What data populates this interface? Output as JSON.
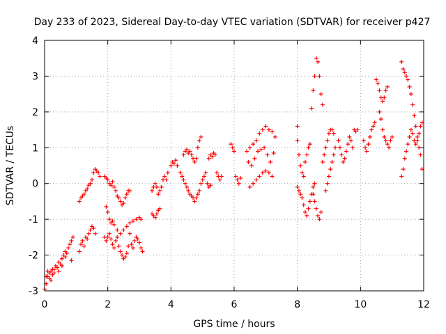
{
  "chart_data": {
    "type": "scatter",
    "title": "Day 233 of 2023, Sidereal Day-to-day VTEC variation (SDTVAR) for receiver p427",
    "xlabel": "GPS time / hours",
    "ylabel": "SDTVAR / TECUs",
    "xlim": [
      0,
      12
    ],
    "ylim": [
      -3,
      4
    ],
    "xticks": [
      "0",
      "2",
      "4",
      "6",
      "8",
      "10",
      "12"
    ],
    "yticks": [
      "-3",
      "-2",
      "-1",
      "0",
      "1",
      "2",
      "3",
      "4"
    ],
    "grid": true,
    "marker": "+",
    "color": "#ff0000",
    "series": [
      {
        "name": "SDTVAR",
        "points": [
          [
            0.0,
            -2.95
          ],
          [
            0.05,
            -2.8
          ],
          [
            0.1,
            -2.6
          ],
          [
            0.15,
            -2.5
          ],
          [
            0.2,
            -2.45
          ],
          [
            0.25,
            -2.55
          ],
          [
            0.3,
            -2.4
          ],
          [
            0.35,
            -2.3
          ],
          [
            0.4,
            -2.35
          ],
          [
            0.45,
            -2.2
          ],
          [
            0.5,
            -2.25
          ],
          [
            0.55,
            -2.1
          ],
          [
            0.6,
            -2.0
          ],
          [
            0.65,
            -1.9
          ],
          [
            0.7,
            -1.95
          ],
          [
            0.75,
            -1.8
          ],
          [
            0.8,
            -1.7
          ],
          [
            0.85,
            -1.6
          ],
          [
            0.9,
            -1.5
          ],
          [
            0.85,
            -2.15
          ],
          [
            0.05,
            -2.6
          ],
          [
            0.1,
            -2.45
          ],
          [
            0.15,
            -2.65
          ],
          [
            0.2,
            -2.7
          ],
          [
            0.25,
            -2.4
          ],
          [
            0.3,
            -2.5
          ],
          [
            0.45,
            -2.45
          ],
          [
            0.55,
            -2.3
          ],
          [
            0.65,
            -2.05
          ],
          [
            1.1,
            -1.9
          ],
          [
            1.15,
            -1.7
          ],
          [
            1.2,
            -1.6
          ],
          [
            1.25,
            -1.75
          ],
          [
            1.3,
            -1.5
          ],
          [
            1.35,
            -1.55
          ],
          [
            1.4,
            -1.4
          ],
          [
            1.45,
            -1.3
          ],
          [
            1.5,
            -1.2
          ],
          [
            1.55,
            -1.25
          ],
          [
            1.6,
            -1.4
          ],
          [
            1.1,
            -0.5
          ],
          [
            1.15,
            -0.4
          ],
          [
            1.2,
            -0.35
          ],
          [
            1.25,
            -0.3
          ],
          [
            1.3,
            -0.2
          ],
          [
            1.35,
            -0.15
          ],
          [
            1.4,
            -0.05
          ],
          [
            1.45,
            0.0
          ],
          [
            1.5,
            0.1
          ],
          [
            1.55,
            0.3
          ],
          [
            1.6,
            0.4
          ],
          [
            1.65,
            0.35
          ],
          [
            1.7,
            0.3
          ],
          [
            1.75,
            0.2
          ],
          [
            1.9,
            0.2
          ],
          [
            1.95,
            0.15
          ],
          [
            2.0,
            0.1
          ],
          [
            2.05,
            0.0
          ],
          [
            2.1,
            -0.05
          ],
          [
            2.15,
            0.05
          ],
          [
            2.2,
            -0.1
          ],
          [
            2.25,
            -0.2
          ],
          [
            2.3,
            -0.35
          ],
          [
            2.35,
            -0.4
          ],
          [
            2.4,
            -0.5
          ],
          [
            2.45,
            -0.6
          ],
          [
            2.5,
            -0.55
          ],
          [
            2.55,
            -0.4
          ],
          [
            2.6,
            -0.3
          ],
          [
            2.65,
            -0.2
          ],
          [
            2.7,
            -0.2
          ],
          [
            1.9,
            -1.5
          ],
          [
            1.95,
            -1.6
          ],
          [
            2.0,
            -1.5
          ],
          [
            2.05,
            -1.4
          ],
          [
            2.1,
            -1.55
          ],
          [
            2.15,
            -1.7
          ],
          [
            2.2,
            -1.8
          ],
          [
            2.25,
            -1.6
          ],
          [
            2.3,
            -1.5
          ],
          [
            2.35,
            -1.75
          ],
          [
            2.4,
            -1.9
          ],
          [
            2.45,
            -2.0
          ],
          [
            2.5,
            -2.1
          ],
          [
            2.55,
            -2.05
          ],
          [
            2.6,
            -1.95
          ],
          [
            2.65,
            -1.75
          ],
          [
            1.95,
            -0.65
          ],
          [
            2.0,
            -0.8
          ],
          [
            2.05,
            -1.0
          ],
          [
            2.1,
            -1.1
          ],
          [
            2.15,
            -1.05
          ],
          [
            2.2,
            -1.15
          ],
          [
            2.3,
            -1.3
          ],
          [
            2.4,
            -1.4
          ],
          [
            2.5,
            -1.3
          ],
          [
            2.6,
            -1.2
          ],
          [
            2.7,
            -1.1
          ],
          [
            2.8,
            -1.05
          ],
          [
            2.9,
            -1.0
          ],
          [
            3.0,
            -0.95
          ],
          [
            3.05,
            -1.0
          ],
          [
            2.7,
            -1.4
          ],
          [
            2.75,
            -1.7
          ],
          [
            2.8,
            -1.8
          ],
          [
            2.85,
            -1.6
          ],
          [
            2.9,
            -1.5
          ],
          [
            2.95,
            -1.55
          ],
          [
            3.0,
            -1.65
          ],
          [
            3.05,
            -1.8
          ],
          [
            3.1,
            -1.9
          ],
          [
            3.4,
            -0.2
          ],
          [
            3.45,
            -0.1
          ],
          [
            3.5,
            0.0
          ],
          [
            3.55,
            -0.1
          ],
          [
            3.6,
            -0.3
          ],
          [
            3.65,
            -0.2
          ],
          [
            3.7,
            -0.1
          ],
          [
            3.75,
            0.1
          ],
          [
            3.8,
            0.2
          ],
          [
            3.85,
            0.1
          ],
          [
            3.9,
            0.3
          ],
          [
            3.4,
            -0.85
          ],
          [
            3.45,
            -0.9
          ],
          [
            3.5,
            -0.95
          ],
          [
            3.55,
            -0.85
          ],
          [
            3.6,
            -0.75
          ],
          [
            3.65,
            -0.7
          ],
          [
            4.0,
            0.5
          ],
          [
            4.05,
            0.6
          ],
          [
            4.1,
            0.55
          ],
          [
            4.15,
            0.65
          ],
          [
            4.2,
            0.5
          ],
          [
            4.3,
            0.3
          ],
          [
            4.35,
            0.2
          ],
          [
            4.4,
            0.1
          ],
          [
            4.45,
            0.0
          ],
          [
            4.5,
            -0.1
          ],
          [
            4.55,
            -0.2
          ],
          [
            4.6,
            -0.3
          ],
          [
            4.65,
            -0.35
          ],
          [
            4.7,
            -0.4
          ],
          [
            4.75,
            -0.5
          ],
          [
            4.8,
            -0.4
          ],
          [
            4.85,
            -0.3
          ],
          [
            4.9,
            -0.2
          ],
          [
            4.95,
            0.0
          ],
          [
            4.4,
            0.8
          ],
          [
            4.45,
            0.9
          ],
          [
            4.5,
            0.95
          ],
          [
            4.55,
            0.85
          ],
          [
            4.6,
            0.9
          ],
          [
            4.65,
            0.8
          ],
          [
            4.7,
            0.7
          ],
          [
            4.75,
            0.6
          ],
          [
            4.8,
            0.7
          ],
          [
            4.85,
            1.0
          ],
          [
            4.9,
            1.2
          ],
          [
            4.95,
            1.3
          ],
          [
            5.0,
            0.1
          ],
          [
            5.05,
            0.2
          ],
          [
            5.1,
            0.3
          ],
          [
            5.15,
            0.0
          ],
          [
            5.2,
            -0.1
          ],
          [
            5.25,
            -0.05
          ],
          [
            5.2,
            0.7
          ],
          [
            5.25,
            0.8
          ],
          [
            5.3,
            0.75
          ],
          [
            5.35,
            0.85
          ],
          [
            5.4,
            0.8
          ],
          [
            5.45,
            0.3
          ],
          [
            5.5,
            0.2
          ],
          [
            5.55,
            0.1
          ],
          [
            5.6,
            0.2
          ],
          [
            5.9,
            1.1
          ],
          [
            5.95,
            1.0
          ],
          [
            6.0,
            0.9
          ],
          [
            6.05,
            0.2
          ],
          [
            6.1,
            0.1
          ],
          [
            6.15,
            0.0
          ],
          [
            6.2,
            0.15
          ],
          [
            6.4,
            0.9
          ],
          [
            6.5,
            1.0
          ],
          [
            6.6,
            1.1
          ],
          [
            6.7,
            1.2
          ],
          [
            6.8,
            1.4
          ],
          [
            6.9,
            1.5
          ],
          [
            7.0,
            1.6
          ],
          [
            7.1,
            1.5
          ],
          [
            7.2,
            1.45
          ],
          [
            7.3,
            1.3
          ],
          [
            6.45,
            0.6
          ],
          [
            6.55,
            0.5
          ],
          [
            6.65,
            0.7
          ],
          [
            6.75,
            0.9
          ],
          [
            6.85,
            0.95
          ],
          [
            6.95,
            1.0
          ],
          [
            7.05,
            0.8
          ],
          [
            7.15,
            0.6
          ],
          [
            7.25,
            0.85
          ],
          [
            6.5,
            -0.1
          ],
          [
            6.6,
            0.0
          ],
          [
            6.7,
            0.1
          ],
          [
            6.8,
            0.2
          ],
          [
            6.9,
            0.3
          ],
          [
            7.0,
            0.35
          ],
          [
            7.1,
            0.3
          ],
          [
            7.2,
            0.2
          ],
          [
            8.0,
            1.6
          ],
          [
            8.0,
            1.2
          ],
          [
            8.05,
            0.8
          ],
          [
            8.1,
            0.5
          ],
          [
            8.15,
            0.3
          ],
          [
            8.2,
            0.2
          ],
          [
            8.25,
            0.6
          ],
          [
            8.3,
            0.8
          ],
          [
            8.35,
            1.0
          ],
          [
            8.4,
            1.1
          ],
          [
            8.0,
            -0.1
          ],
          [
            8.05,
            -0.2
          ],
          [
            8.1,
            -0.3
          ],
          [
            8.15,
            -0.4
          ],
          [
            8.2,
            -0.6
          ],
          [
            8.25,
            -0.8
          ],
          [
            8.3,
            -0.9
          ],
          [
            8.35,
            -0.7
          ],
          [
            8.4,
            -0.5
          ],
          [
            8.45,
            -0.3
          ],
          [
            8.5,
            -0.1
          ],
          [
            8.55,
            0.0
          ],
          [
            8.45,
            2.1
          ],
          [
            8.5,
            2.6
          ],
          [
            8.55,
            3.0
          ],
          [
            8.6,
            3.5
          ],
          [
            8.65,
            3.4
          ],
          [
            8.7,
            3.0
          ],
          [
            8.75,
            2.5
          ],
          [
            8.8,
            2.2
          ],
          [
            8.5,
            -0.3
          ],
          [
            8.55,
            -0.5
          ],
          [
            8.6,
            -0.7
          ],
          [
            8.65,
            -0.9
          ],
          [
            8.7,
            -1.0
          ],
          [
            8.75,
            -0.8
          ],
          [
            8.8,
            0.6
          ],
          [
            8.85,
            0.8
          ],
          [
            8.9,
            1.0
          ],
          [
            8.95,
            1.2
          ],
          [
            9.0,
            1.4
          ],
          [
            9.05,
            1.5
          ],
          [
            9.1,
            1.5
          ],
          [
            9.15,
            1.4
          ],
          [
            8.9,
            -0.2
          ],
          [
            8.95,
            0.0
          ],
          [
            9.0,
            0.2
          ],
          [
            9.05,
            0.4
          ],
          [
            9.1,
            0.6
          ],
          [
            9.15,
            0.8
          ],
          [
            9.2,
            1.0
          ],
          [
            9.3,
            1.2
          ],
          [
            9.35,
            1.0
          ],
          [
            9.4,
            0.8
          ],
          [
            9.45,
            0.6
          ],
          [
            9.5,
            0.7
          ],
          [
            9.55,
            0.9
          ],
          [
            9.6,
            1.1
          ],
          [
            9.65,
            1.3
          ],
          [
            9.7,
            1.2
          ],
          [
            9.75,
            1.0
          ],
          [
            9.8,
            1.5
          ],
          [
            9.85,
            1.45
          ],
          [
            9.9,
            1.5
          ],
          [
            10.1,
            1.2
          ],
          [
            10.15,
            1.0
          ],
          [
            10.2,
            0.9
          ],
          [
            10.25,
            1.1
          ],
          [
            10.3,
            1.3
          ],
          [
            10.35,
            1.5
          ],
          [
            10.4,
            1.6
          ],
          [
            10.45,
            1.7
          ],
          [
            10.6,
            2.0
          ],
          [
            10.65,
            1.8
          ],
          [
            10.7,
            1.5
          ],
          [
            10.75,
            1.3
          ],
          [
            10.8,
            1.2
          ],
          [
            10.85,
            1.1
          ],
          [
            10.9,
            1.0
          ],
          [
            10.95,
            1.2
          ],
          [
            11.0,
            1.3
          ],
          [
            10.5,
            2.9
          ],
          [
            10.55,
            2.8
          ],
          [
            10.6,
            2.6
          ],
          [
            10.65,
            2.4
          ],
          [
            10.7,
            2.3
          ],
          [
            10.75,
            2.4
          ],
          [
            10.8,
            2.6
          ],
          [
            10.85,
            2.7
          ],
          [
            11.3,
            3.4
          ],
          [
            11.35,
            3.2
          ],
          [
            11.4,
            3.1
          ],
          [
            11.45,
            3.0
          ],
          [
            11.5,
            2.9
          ],
          [
            11.55,
            2.7
          ],
          [
            11.6,
            2.5
          ],
          [
            11.65,
            2.2
          ],
          [
            11.7,
            1.9
          ],
          [
            11.75,
            1.6
          ],
          [
            11.8,
            1.3
          ],
          [
            11.85,
            1.0
          ],
          [
            11.9,
            0.8
          ],
          [
            11.95,
            0.4
          ],
          [
            11.3,
            0.2
          ],
          [
            11.35,
            0.4
          ],
          [
            11.4,
            0.7
          ],
          [
            11.45,
            0.9
          ],
          [
            11.5,
            1.1
          ],
          [
            11.55,
            1.3
          ],
          [
            11.6,
            1.5
          ],
          [
            11.65,
            1.4
          ],
          [
            11.7,
            1.2
          ],
          [
            11.75,
            1.1
          ],
          [
            11.8,
            1.2
          ],
          [
            11.85,
            1.4
          ],
          [
            11.9,
            1.6
          ],
          [
            11.95,
            1.7
          ]
        ]
      }
    ]
  }
}
